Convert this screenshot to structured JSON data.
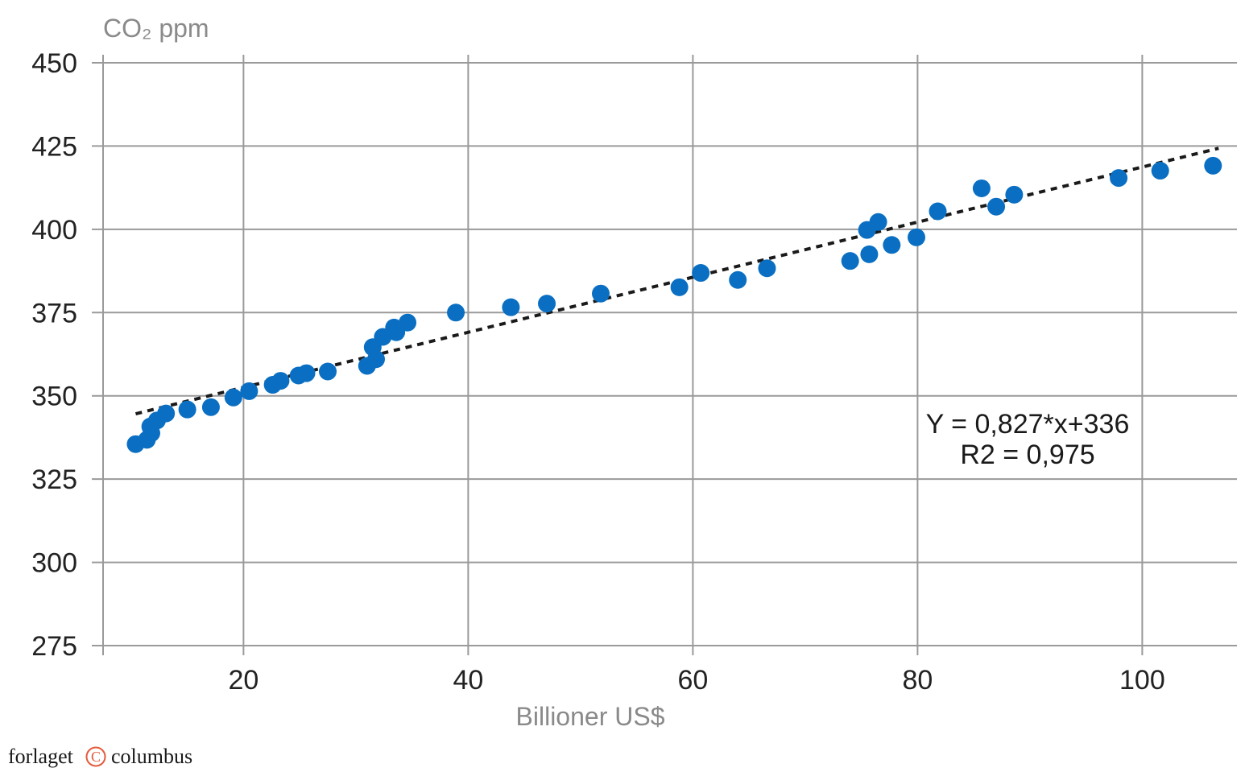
{
  "chart_data": {
    "type": "scatter",
    "ylabel": "CO₂ ppm",
    "xlabel": "Billioner US$",
    "xlim": [
      7.5,
      108
    ],
    "ylim": [
      275,
      450
    ],
    "x_ticks": [
      20,
      40,
      60,
      80,
      100
    ],
    "y_ticks": [
      275,
      300,
      325,
      350,
      375,
      400,
      425,
      450
    ],
    "x_tick_labels": [
      "20",
      "40",
      "60",
      "80",
      "100"
    ],
    "y_tick_labels": [
      "275",
      "300",
      "325",
      "350",
      "375",
      "400",
      "425",
      "450"
    ],
    "grid": true,
    "series": [
      {
        "marker_color": "#0a6fc2",
        "points": [
          [
            10.4,
            335.5
          ],
          [
            11.4,
            336.8
          ],
          [
            11.8,
            338.8
          ],
          [
            11.7,
            340.8
          ],
          [
            12.3,
            342.6
          ],
          [
            13.1,
            344.7
          ],
          [
            15.0,
            345.9
          ],
          [
            17.1,
            346.6
          ],
          [
            19.1,
            349.5
          ],
          [
            20.5,
            351.4
          ],
          [
            22.6,
            353.3
          ],
          [
            23.3,
            354.5
          ],
          [
            24.9,
            356.1
          ],
          [
            25.6,
            356.8
          ],
          [
            27.5,
            357.3
          ],
          [
            31.0,
            359.0
          ],
          [
            31.8,
            361.0
          ],
          [
            31.5,
            364.6
          ],
          [
            32.4,
            367.7
          ],
          [
            33.6,
            369.1
          ],
          [
            33.4,
            370.5
          ],
          [
            34.6,
            372.0
          ],
          [
            38.9,
            375.0
          ],
          [
            43.8,
            376.6
          ],
          [
            47.0,
            377.7
          ],
          [
            51.8,
            380.7
          ],
          [
            58.8,
            382.6
          ],
          [
            60.7,
            386.9
          ],
          [
            64.0,
            384.8
          ],
          [
            66.6,
            388.3
          ],
          [
            74.0,
            390.5
          ],
          [
            75.7,
            392.5
          ],
          [
            75.5,
            399.8
          ],
          [
            76.5,
            402.2
          ],
          [
            77.7,
            395.3
          ],
          [
            79.9,
            397.6
          ],
          [
            81.8,
            405.4
          ],
          [
            85.7,
            412.3
          ],
          [
            87.0,
            406.8
          ],
          [
            88.6,
            410.4
          ],
          [
            97.9,
            415.4
          ],
          [
            101.6,
            417.6
          ],
          [
            106.3,
            419.1
          ]
        ]
      }
    ],
    "trendline": {
      "style": "dotted",
      "color": "#1a1a1a",
      "slope": 0.827,
      "intercept": 336,
      "x_range": [
        10.4,
        106.8
      ]
    },
    "annotations": [
      "Y = 0,827*x+336",
      "R2 = 0,975"
    ]
  },
  "branding": {
    "left_word": "forlaget",
    "right_word": "columbus",
    "circle_glyph": "C",
    "accent_color": "#e45b3c"
  }
}
